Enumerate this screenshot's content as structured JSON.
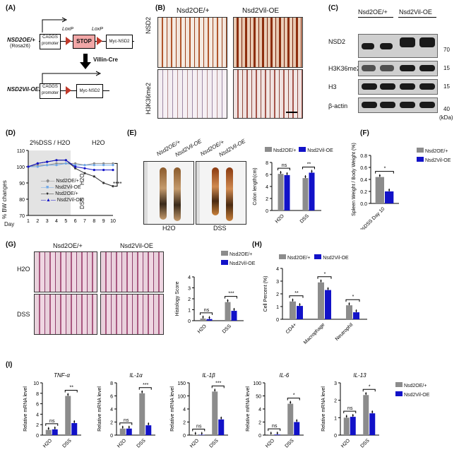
{
  "panels": {
    "A": "(A)",
    "B": "(B)",
    "C": "(C)",
    "D": "(D)",
    "E": "(E)",
    "F": "(F)",
    "G": "(G)",
    "H": "(H)",
    "I": "(I)"
  },
  "groups": {
    "oe": "Nsd2OE/+",
    "vil": "Nsd2Vil-OE"
  },
  "panelA": {
    "allele1": "NSD2OE/+",
    "allele1_sub": "(Rosa26)",
    "promoter": "CAGGS promoter",
    "loxp1": "LoxP",
    "loxp2": "LoxP",
    "stop": "STOP",
    "myc": "Myc-NSD2",
    "cre": "Villin-Cre",
    "allele2": "NSD2Vil-OE"
  },
  "panelB": {
    "row1": "NSD2",
    "row2": "H3K36me2"
  },
  "panelC": {
    "rows": [
      {
        "label": "NSD2",
        "mw": "70"
      },
      {
        "label": "H3K36me2",
        "mw": "15"
      },
      {
        "label": "H3",
        "mw": "15"
      },
      {
        "label": "β-actin",
        "mw": "40"
      }
    ],
    "kda": "(kDa)"
  },
  "panelD": {
    "title_left": "2%DSS / H2O",
    "title_right": "H2O",
    "ylabel": "% BW changes",
    "xlabel": "Day",
    "sig": "****",
    "h2o": "H2O",
    "dss": "DSS",
    "legend": [
      "Nsd2OE/+",
      "Nsd2Vil-OE",
      "Nsd2OE/+",
      "Nsd2Vil-OE"
    ],
    "yticks": [
      "110",
      "100",
      "90",
      "80",
      "70"
    ],
    "xticks": [
      "1",
      "2",
      "3",
      "4",
      "5",
      "6",
      "7",
      "8",
      "9",
      "10"
    ]
  },
  "panelE": {
    "img_h2o": "H2O",
    "img_dss": "DSS",
    "ylabel": "Colon length(cm)",
    "xticks": [
      "H2O",
      "DSS"
    ],
    "yticks": [
      "8",
      "6",
      "4",
      "2",
      "0"
    ],
    "sig": [
      "ns",
      "ns",
      "**"
    ]
  },
  "panelF": {
    "ylabel": "Spleen Weight / Body Weight (%)",
    "xlabel": "2%DSS Day 10",
    "yticks": [
      "0.8",
      "0.6",
      "0.4",
      "0.2",
      "0.0"
    ],
    "sig": "*"
  },
  "panelG": {
    "row1": "H2O",
    "row2": "DSS",
    "ylabel": "Histology Score",
    "xticks": [
      "H2O",
      "DSS"
    ],
    "yticks": [
      "4",
      "3",
      "2",
      "1",
      "0"
    ],
    "sig": [
      "ns",
      "***"
    ]
  },
  "panelH": {
    "ylabel": "Cell Percent (%)",
    "xticks": [
      "CD4+",
      "Macrophage",
      "Neutrophil"
    ],
    "yticks": [
      "4",
      "3",
      "2",
      "1",
      "0"
    ],
    "sig": [
      "**",
      "*",
      "*"
    ]
  },
  "panelI": {
    "ylabel": "Relative mRNA level",
    "xticks": [
      "H2O",
      "DSS"
    ],
    "genes": [
      {
        "name": "TNF-α",
        "sig": [
          "ns",
          "**"
        ],
        "yticks": [
          "10",
          "8",
          "6",
          "4",
          "2",
          "0"
        ]
      },
      {
        "name": "IL-1α",
        "sig": [
          "ns",
          "***"
        ],
        "yticks": [
          "8",
          "6",
          "4",
          "2",
          "0"
        ]
      },
      {
        "name": "IL-1β",
        "sig": [
          "ns",
          "***"
        ],
        "yticks": [
          "150",
          "100",
          "4",
          "2",
          "0"
        ]
      },
      {
        "name": "IL-6",
        "sig": [
          "ns",
          "*"
        ],
        "yticks": [
          "100",
          "50",
          "4",
          "2",
          "0"
        ]
      },
      {
        "name": "IL-13",
        "sig": [
          "ns",
          "*"
        ],
        "yticks": [
          "3",
          "2",
          "1",
          "0"
        ]
      }
    ]
  },
  "colors": {
    "oe": "#8c8c8c",
    "vil": "#1212c8",
    "light_blue": "#6fa8e8",
    "dark": "#333333"
  },
  "chart_data": [
    {
      "type": "line",
      "title": "",
      "xlabel": "Day",
      "ylabel": "% BW changes",
      "x": [
        1,
        2,
        3,
        4,
        5,
        6,
        7,
        8,
        9,
        10
      ],
      "ylim": [
        70,
        110
      ],
      "series": [
        {
          "name": "Nsd2OE/+ H2O",
          "values": [
            100,
            101,
            101,
            102,
            102,
            102,
            101,
            102,
            102,
            102
          ]
        },
        {
          "name": "Nsd2Vil-OE H2O",
          "values": [
            100,
            100,
            101,
            101,
            102,
            101,
            101,
            101,
            101,
            101
          ]
        },
        {
          "name": "Nsd2OE/+ DSS",
          "values": [
            100,
            102,
            103,
            104,
            104,
            99,
            96,
            94,
            90,
            88
          ]
        },
        {
          "name": "Nsd2Vil-OE DSS",
          "values": [
            100,
            102,
            103,
            104,
            104,
            100,
            99,
            98,
            98,
            98
          ]
        }
      ]
    },
    {
      "type": "bar",
      "title": "",
      "xlabel": "",
      "ylabel": "Colon length(cm)",
      "categories": [
        "H2O",
        "DSS"
      ],
      "ylim": [
        0,
        8
      ],
      "series": [
        {
          "name": "Nsd2OE/+",
          "values": [
            6.1,
            5.4
          ]
        },
        {
          "name": "Nsd2Vil-OE",
          "values": [
            5.9,
            6.3
          ]
        }
      ]
    },
    {
      "type": "bar",
      "title": "",
      "xlabel": "2%DSS Day 10",
      "ylabel": "Spleen Weight / Body Weight (%)",
      "categories": [
        "2%DSS Day 10"
      ],
      "ylim": [
        0,
        0.8
      ],
      "series": [
        {
          "name": "Nsd2OE/+",
          "values": [
            0.44
          ]
        },
        {
          "name": "Nsd2Vil-OE",
          "values": [
            0.2
          ]
        }
      ]
    },
    {
      "type": "bar",
      "title": "",
      "xlabel": "",
      "ylabel": "Histology Score",
      "categories": [
        "H2O",
        "DSS"
      ],
      "ylim": [
        0,
        4
      ],
      "series": [
        {
          "name": "Nsd2OE/+",
          "values": [
            0.2,
            1.7
          ]
        },
        {
          "name": "Nsd2Vil-OE",
          "values": [
            0.15,
            0.9
          ]
        }
      ]
    },
    {
      "type": "bar",
      "title": "",
      "xlabel": "",
      "ylabel": "Cell Percent (%)",
      "categories": [
        "CD4+",
        "Macrophage",
        "Neutrophil"
      ],
      "ylim": [
        0,
        4
      ],
      "series": [
        {
          "name": "Nsd2OE/+",
          "values": [
            1.4,
            2.9,
            1.1
          ]
        },
        {
          "name": "Nsd2Vil-OE",
          "values": [
            1.05,
            2.3,
            0.55
          ]
        }
      ]
    },
    {
      "type": "bar",
      "title": "TNF-α",
      "xlabel": "",
      "ylabel": "Relative mRNA level",
      "categories": [
        "H2O",
        "DSS"
      ],
      "ylim": [
        0,
        10
      ],
      "series": [
        {
          "name": "Nsd2OE/+",
          "values": [
            1.0,
            7.5
          ]
        },
        {
          "name": "Nsd2Vil-OE",
          "values": [
            1.1,
            2.3
          ]
        }
      ]
    },
    {
      "type": "bar",
      "title": "IL-1α",
      "xlabel": "",
      "ylabel": "Relative mRNA level",
      "categories": [
        "H2O",
        "DSS"
      ],
      "ylim": [
        0,
        8
      ],
      "series": [
        {
          "name": "Nsd2OE/+",
          "values": [
            1.0,
            6.4
          ]
        },
        {
          "name": "Nsd2Vil-OE",
          "values": [
            1.0,
            1.5
          ]
        }
      ]
    },
    {
      "type": "bar",
      "title": "IL-1β",
      "xlabel": "",
      "ylabel": "Relative mRNA level",
      "categories": [
        "H2O",
        "DSS"
      ],
      "ylim": [
        0,
        150
      ],
      "series": [
        {
          "name": "Nsd2OE/+",
          "values": [
            1.0,
            125
          ]
        },
        {
          "name": "Nsd2Vil-OE",
          "values": [
            1.0,
            45
          ]
        }
      ]
    },
    {
      "type": "bar",
      "title": "IL-6",
      "xlabel": "",
      "ylabel": "Relative mRNA level",
      "categories": [
        "H2O",
        "DSS"
      ],
      "ylim": [
        0,
        100
      ],
      "series": [
        {
          "name": "Nsd2OE/+",
          "values": [
            1.0,
            60
          ]
        },
        {
          "name": "Nsd2Vil-OE",
          "values": [
            1.1,
            25
          ]
        }
      ]
    },
    {
      "type": "bar",
      "title": "IL-13",
      "xlabel": "",
      "ylabel": "Relative mRNA level",
      "categories": [
        "H2O",
        "DSS"
      ],
      "ylim": [
        0,
        3
      ],
      "series": [
        {
          "name": "Nsd2OE/+",
          "values": [
            1.0,
            2.3
          ]
        },
        {
          "name": "Nsd2Vil-OE",
          "values": [
            1.05,
            1.25
          ]
        }
      ]
    }
  ]
}
